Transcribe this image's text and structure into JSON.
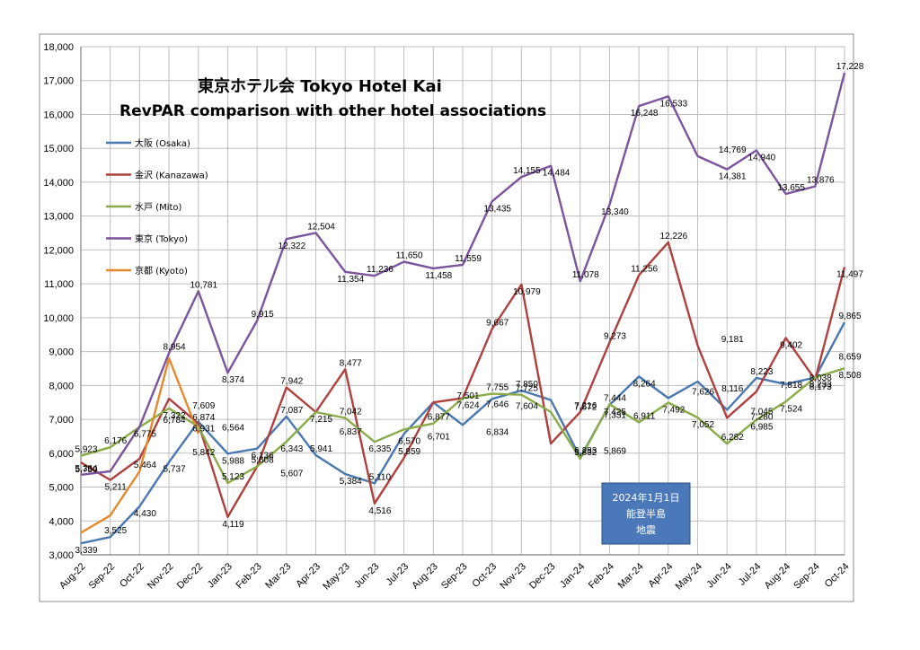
{
  "chart_data": {
    "type": "line",
    "title_line1": "東京ホテル会 Tokyo Hotel Kai",
    "title_line2": "RevPAR comparison with other hotel associations",
    "ylim": [
      3000,
      18000
    ],
    "y_ticks": [
      "3,000",
      "4,000",
      "5,000",
      "6,000",
      "7,000",
      "8,000",
      "9,000",
      "10,000",
      "11,000",
      "12,000",
      "13,000",
      "14,000",
      "15,000",
      "16,000",
      "17,000",
      "18,000"
    ],
    "categories": [
      "Aug-22",
      "Sep-22",
      "Oct-22",
      "Nov-22",
      "Dec-22",
      "Jan-23",
      "Feb-23",
      "Mar-23",
      "Apr-23",
      "May-23",
      "Jun-23",
      "Jul-23",
      "Aug-23",
      "Sep-23",
      "Oct-23",
      "Nov-23",
      "Dec-23",
      "Jan-24",
      "Feb-24",
      "Mar-24",
      "Apr-24",
      "May-24",
      "Jun-24",
      "Jul-24",
      "Aug-24",
      "Sep-24",
      "Oct-24"
    ],
    "series": [
      {
        "name": "大阪 (Osaka)",
        "color": "#4a78b0",
        "values": [
          3339,
          3525,
          4430,
          5737,
          6931,
          5988,
          6136,
          7087,
          5941,
          5384,
          5110,
          6570,
          7501,
          6834,
          7604,
          7850,
          7572,
          5869,
          7425,
          8264,
          7626,
          8116,
          7280,
          8223,
          8038,
          8233,
          9865
        ]
      },
      {
        "name": "金沢 (Kanazawa)",
        "color": "#b0403d",
        "values": [
          5730,
          5211,
          5842,
          7609,
          6874,
          4119,
          5607,
          7942,
          7215,
          8477,
          4516,
          5859,
          7501,
          7624,
          9667,
          10979,
          6283,
          7216,
          9273,
          11256,
          12226,
          9181,
          7045,
          7818,
          9402,
          8173,
          11497
        ]
      },
      {
        "name": "水戸 (Mito)",
        "color": "#8aab48",
        "values": [
          5923,
          6176,
          6775,
          7322,
          6784,
          5123,
          5608,
          6343,
          7215,
          7042,
          6335,
          6701,
          6877,
          7624,
          7755,
          7725,
          7216,
          5832,
          7444,
          6911,
          7492,
          7052,
          6282,
          6985,
          7524,
          8233,
          8508
        ]
      },
      {
        "name": "東京 (Tokyo)",
        "color": "#7b549e",
        "values": [
          5364,
          5464,
          6784,
          8954,
          10781,
          8374,
          9915,
          12322,
          12504,
          11354,
          11236,
          11650,
          11458,
          11559,
          13435,
          14155,
          14484,
          11078,
          13340,
          16248,
          16533,
          14769,
          14381,
          14940,
          13655,
          13876,
          17228
        ]
      },
      {
        "name": "京都 (Kyoto)",
        "color": "#e48a2c",
        "values": [
          3652,
          4160,
          5464,
          8800,
          6584,
          null,
          null,
          null,
          null,
          null,
          null,
          null,
          null,
          null,
          null,
          null,
          null,
          null,
          null,
          null,
          null,
          null,
          null,
          null,
          null,
          null,
          null
        ]
      }
    ],
    "data_labels": [
      [
        "5,923",
        0,
        5923
      ],
      [
        "5,730",
        0,
        5730
      ],
      [
        "5,364",
        0,
        5364
      ],
      [
        "3,339",
        0,
        3339
      ],
      [
        "6,176",
        1,
        6176
      ],
      [
        "5,211",
        1,
        5211
      ],
      [
        "3,525",
        1,
        3525
      ],
      [
        "6,775",
        2,
        6775
      ],
      [
        "5,464",
        2,
        5464
      ],
      [
        "4,430",
        2,
        4430
      ],
      [
        "8,954",
        3,
        8954
      ],
      [
        "7,322",
        3,
        7322
      ],
      [
        "6,784",
        3,
        6784
      ],
      [
        "5,737",
        3,
        5737
      ],
      [
        "10,781",
        4,
        10781
      ],
      [
        "7,609",
        4,
        7609
      ],
      [
        "6,874",
        4,
        6874
      ],
      [
        "6,931",
        4,
        6931
      ],
      [
        "5,842",
        4,
        5842
      ],
      [
        "8,374",
        5,
        8374
      ],
      [
        "6,564",
        5,
        6564
      ],
      [
        "5,988",
        5,
        5988
      ],
      [
        "5,123",
        5,
        5123
      ],
      [
        "4,119",
        5,
        4119
      ],
      [
        "9,915",
        6,
        9915
      ],
      [
        "6,136",
        6,
        6136
      ],
      [
        "5,608",
        6,
        5608
      ],
      [
        "12,322",
        7,
        12322
      ],
      [
        "7,942",
        7,
        7942
      ],
      [
        "6,343",
        7,
        6343
      ],
      [
        "7,087",
        7,
        7087
      ],
      [
        "5,607",
        7,
        5607
      ],
      [
        "12,504",
        8,
        12504
      ],
      [
        "7,215",
        8,
        7215
      ],
      [
        "5,941",
        8,
        5941
      ],
      [
        "11,354",
        9,
        11354
      ],
      [
        "8,477",
        9,
        8477
      ],
      [
        "6,837",
        9,
        6837
      ],
      [
        "7,042",
        9,
        7042
      ],
      [
        "5,384",
        9,
        5384
      ],
      [
        "11,236",
        10,
        11236
      ],
      [
        "6,335",
        10,
        6335
      ],
      [
        "5,110",
        10,
        5110
      ],
      [
        "4,516",
        10,
        4516
      ],
      [
        "11,650",
        11,
        11650
      ],
      [
        "6,570",
        11,
        6570
      ],
      [
        "5,859",
        11,
        5859
      ],
      [
        "11,458",
        12,
        11458
      ],
      [
        "6,877",
        12,
        6877
      ],
      [
        "6,701",
        12,
        6701
      ],
      [
        "11,559",
        13,
        11559
      ],
      [
        "7,624",
        13,
        7624
      ],
      [
        "7,501",
        13,
        7501
      ],
      [
        "13,435",
        14,
        13435
      ],
      [
        "9,667",
        14,
        9667
      ],
      [
        "7,646",
        14,
        7646
      ],
      [
        "7,755",
        14,
        7755
      ],
      [
        "6,834",
        14,
        6834
      ],
      [
        "14,155",
        15,
        14155
      ],
      [
        "10,979",
        15,
        10979
      ],
      [
        "7,850",
        15,
        7850
      ],
      [
        "7,604",
        15,
        7604
      ],
      [
        "7,725",
        15,
        7725
      ],
      [
        "14,484",
        16,
        14484
      ],
      [
        "11,078",
        17,
        11078
      ],
      [
        "7,572",
        17,
        7572
      ],
      [
        "7,216",
        17,
        7216
      ],
      [
        "6,283",
        17,
        6283
      ],
      [
        "5,832",
        17,
        5832
      ],
      [
        "13,340",
        18,
        13340
      ],
      [
        "9,273",
        18,
        9273
      ],
      [
        "7,425",
        18,
        7425
      ],
      [
        "7,444",
        18,
        7444
      ],
      [
        "7,331",
        18,
        7331
      ],
      [
        "5,869",
        18,
        5869
      ],
      [
        "16,248",
        19,
        16248
      ],
      [
        "11,256",
        19,
        11256
      ],
      [
        "8,264",
        19,
        8264
      ],
      [
        "6,911",
        19,
        6911
      ],
      [
        "16,533",
        20,
        16533
      ],
      [
        "12,226",
        20,
        12226
      ],
      [
        "7,492",
        20,
        7492
      ],
      [
        "7,626",
        21,
        7626
      ],
      [
        "7,052",
        21,
        7052
      ],
      [
        "14,769",
        22,
        14769
      ],
      [
        "14,381",
        22,
        14381
      ],
      [
        "9,181",
        22,
        9181
      ],
      [
        "8,116",
        22,
        8116
      ],
      [
        "6,282",
        22,
        6282
      ],
      [
        "14,940",
        23,
        14940
      ],
      [
        "8,223",
        23,
        8223
      ],
      [
        "7,280",
        23,
        7280
      ],
      [
        "7,045",
        23,
        7045
      ],
      [
        "6,985",
        23,
        6985
      ],
      [
        "13,655",
        24,
        13655
      ],
      [
        "9,402",
        24,
        9402
      ],
      [
        "7,818",
        24,
        7818
      ],
      [
        "7,524",
        24,
        7524
      ],
      [
        "13,876",
        25,
        13876
      ],
      [
        "8,233",
        25,
        8233
      ],
      [
        "8,038",
        25,
        8038
      ],
      [
        "8,173",
        25,
        8173
      ],
      [
        "17,228",
        26,
        17228
      ],
      [
        "11,497",
        26,
        11497
      ],
      [
        "9,865",
        26,
        9865
      ],
      [
        "8,508",
        26,
        8508
      ],
      [
        "8,659",
        26,
        8659
      ]
    ],
    "annotation": [
      "2024年1月1日",
      "能登半島",
      "地震"
    ],
    "annotation_color": "#4a78b8",
    "axis_color": "#7f7f7f",
    "grid_color": "#bfbfbf"
  }
}
